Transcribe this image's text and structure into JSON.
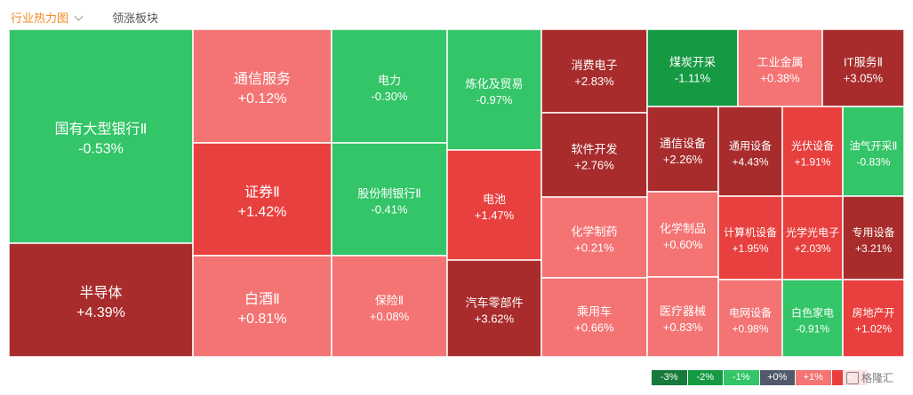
{
  "tabs": {
    "active_label": "行业热力图",
    "other_label": "领涨板块"
  },
  "colors": {
    "strong_red": "#a82c2c",
    "red": "#e8403e",
    "light_red": "#f47373",
    "light_green": "#33c567",
    "green": "#159a42",
    "neutral": "#505a6a"
  },
  "chart_data": {
    "type": "treemap",
    "title": "",
    "value_unit": "%",
    "cells": [
      {
        "name": "国有大型银行Ⅱ",
        "change": -0.53,
        "label": "-0.53%"
      },
      {
        "name": "半导体",
        "change": 4.39,
        "label": "+4.39%"
      },
      {
        "name": "通信服务",
        "change": 0.12,
        "label": "+0.12%"
      },
      {
        "name": "证券Ⅱ",
        "change": 1.42,
        "label": "+1.42%"
      },
      {
        "name": "白酒Ⅱ",
        "change": 0.81,
        "label": "+0.81%"
      },
      {
        "name": "电力",
        "change": -0.3,
        "label": "-0.30%"
      },
      {
        "name": "股份制银行Ⅱ",
        "change": -0.41,
        "label": "-0.41%"
      },
      {
        "name": "保险Ⅱ",
        "change": 0.08,
        "label": "+0.08%"
      },
      {
        "name": "炼化及贸易",
        "change": -0.97,
        "label": "-0.97%"
      },
      {
        "name": "电池",
        "change": 1.47,
        "label": "+1.47%"
      },
      {
        "name": "汽车零部件",
        "change": 3.62,
        "label": "+3.62%"
      },
      {
        "name": "消费电子",
        "change": 2.83,
        "label": "+2.83%"
      },
      {
        "name": "软件开发",
        "change": 2.76,
        "label": "+2.76%"
      },
      {
        "name": "化学制药",
        "change": 0.21,
        "label": "+0.21%"
      },
      {
        "name": "乘用车",
        "change": 0.66,
        "label": "+0.66%"
      },
      {
        "name": "煤炭开采",
        "change": -1.11,
        "label": "-1.11%"
      },
      {
        "name": "工业金属",
        "change": 0.38,
        "label": "+0.38%"
      },
      {
        "name": "IT服务Ⅱ",
        "change": 3.05,
        "label": "+3.05%"
      },
      {
        "name": "通信设备",
        "change": 2.26,
        "label": "+2.26%"
      },
      {
        "name": "通用设备",
        "change": 4.43,
        "label": "+4.43%"
      },
      {
        "name": "光伏设备",
        "change": 1.91,
        "label": "+1.91%"
      },
      {
        "name": "油气开采Ⅱ",
        "change": -0.83,
        "label": "-0.83%"
      },
      {
        "name": "化学制品",
        "change": 0.6,
        "label": "+0.60%"
      },
      {
        "name": "计算机设备",
        "change": 1.95,
        "label": "+1.95%"
      },
      {
        "name": "光学光电子",
        "change": 2.03,
        "label": "+2.03%"
      },
      {
        "name": "专用设备",
        "change": 3.21,
        "label": "+3.21%"
      },
      {
        "name": "医疗器械",
        "change": 0.83,
        "label": "+0.83%"
      },
      {
        "name": "电网设备",
        "change": 0.98,
        "label": "+0.98%"
      },
      {
        "name": "白色家电",
        "change": -0.91,
        "label": "-0.91%"
      },
      {
        "name": "房地产开",
        "change": 1.02,
        "label": "+1.02%"
      }
    ],
    "legend": [
      {
        "label": "-3%",
        "color": "#157a3a"
      },
      {
        "label": "-2%",
        "color": "#159a42"
      },
      {
        "label": "-1%",
        "color": "#33c567"
      },
      {
        "label": "+0%",
        "color": "#505a6a"
      },
      {
        "label": "+1%",
        "color": "#f47373"
      },
      {
        "label": "+",
        "color": "#e8403e"
      }
    ]
  },
  "watermark": {
    "text": "格隆汇"
  }
}
